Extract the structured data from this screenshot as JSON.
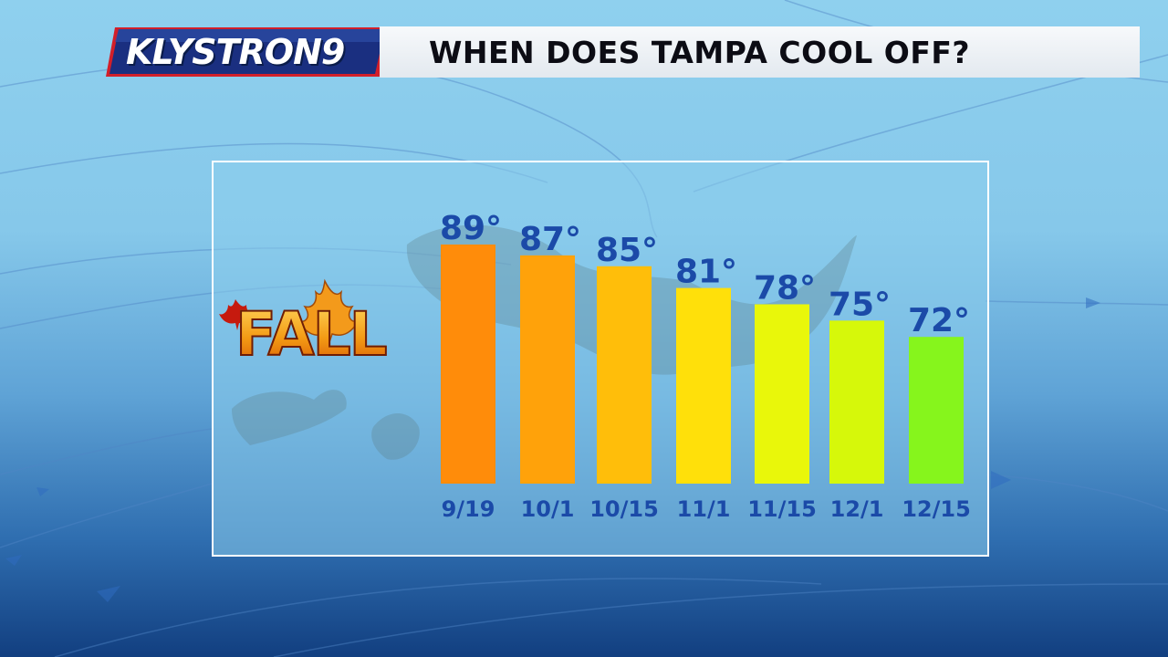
{
  "header": {
    "logo_text": "KLYSTRON9",
    "title": "WHEN DOES TAMPA COOL OFF?"
  },
  "badge": {
    "text": "FALL"
  },
  "chart_data": {
    "type": "bar",
    "title": "WHEN DOES TAMPA COOL OFF?",
    "xlabel": "",
    "ylabel": "",
    "categories": [
      "9/19",
      "10/1",
      "10/15",
      "11/1",
      "11/15",
      "12/1",
      "12/15"
    ],
    "values": [
      89,
      87,
      85,
      81,
      78,
      75,
      72
    ],
    "value_suffix": "°",
    "unit": "°",
    "ylim": [
      45,
      90
    ],
    "grid": false,
    "legend": "none",
    "colors": [
      "#ff8c0a",
      "#ffa20a",
      "#ffbe0a",
      "#ffe00a",
      "#e9f70a",
      "#d6f80a",
      "#86f51c"
    ],
    "label_color": "#1b4aa8"
  },
  "colors": {
    "brand_blue": "#1a2f80",
    "brand_red": "#d21f2a",
    "title_text": "#0c0c14",
    "panel_border": "#ffffff"
  }
}
